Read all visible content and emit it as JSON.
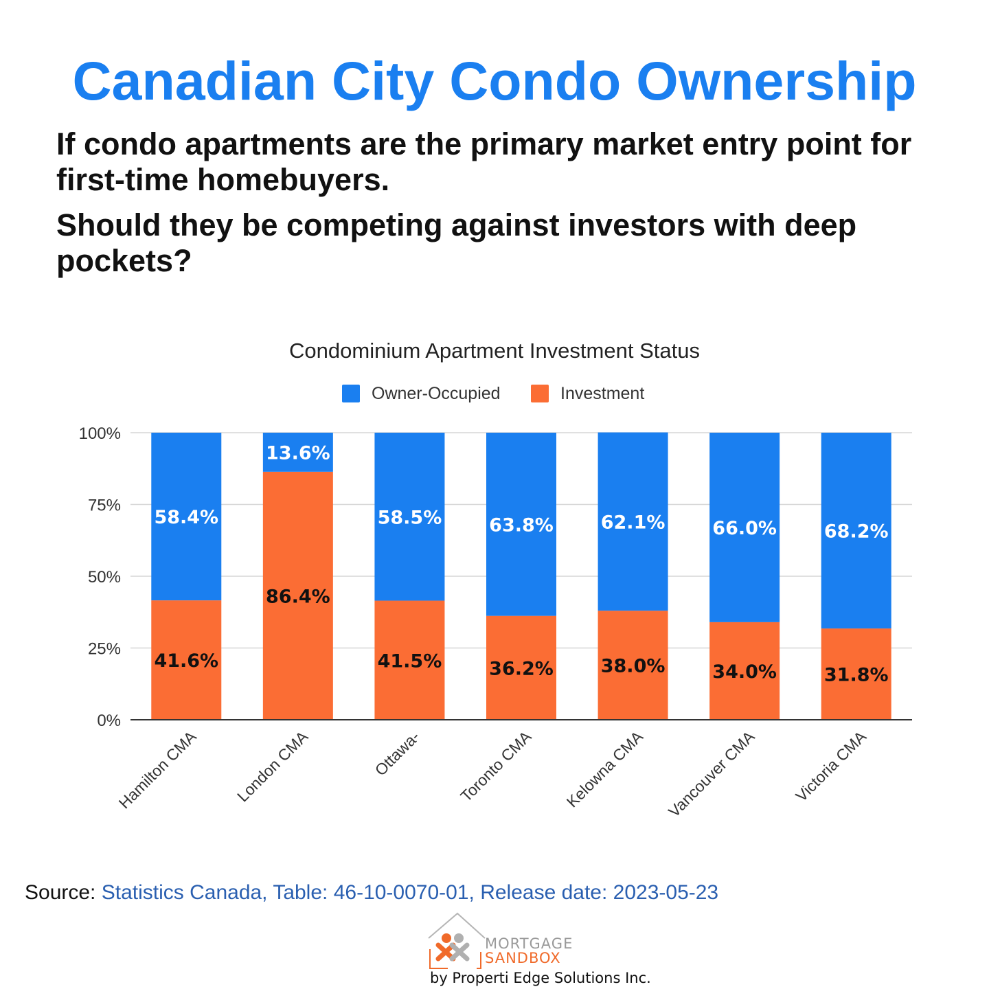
{
  "header": {
    "title": "Canadian City Condo Ownership",
    "question_1": "If condo apartments are the primary market entry point for first-time homebuyers.",
    "question_2": "Should they be competing against investors with deep pockets?"
  },
  "chart_data": {
    "type": "bar",
    "stacked": true,
    "title": "Condominium Apartment Investment Status",
    "categories": [
      "Hamilton CMA",
      "London CMA",
      "Ottawa-",
      "Toronto CMA",
      "Kelowna CMA",
      "Vancouver CMA",
      "Victoria CMA"
    ],
    "series": [
      {
        "name": "Owner-Occupied",
        "color": "#1a7ff0",
        "values": [
          58.4,
          13.6,
          58.5,
          63.8,
          62.1,
          66.0,
          68.2
        ]
      },
      {
        "name": "Investment",
        "color": "#fb6d34",
        "values": [
          41.6,
          86.4,
          41.5,
          36.2,
          38.0,
          34.0,
          31.8
        ]
      }
    ],
    "data_labels": {
      "Owner-Occupied": [
        "58.4%",
        "13.6%",
        "58.5%",
        "63.8%",
        "62.1%",
        "66.0%",
        "68.2%"
      ],
      "Investment": [
        "41.6%",
        "86.4%",
        "41.5%",
        "36.2%",
        "38.0%",
        "34.0%",
        "31.8%"
      ]
    },
    "yticks": [
      "0%",
      "25%",
      "50%",
      "75%",
      "100%"
    ],
    "ylim": [
      0,
      100
    ],
    "grid": true,
    "legend_position": "top-center"
  },
  "source": {
    "label": "Source:",
    "text": "Statistics Canada, Table: 46-10-0070-01, Release date: 2023-05-23"
  },
  "logo": {
    "line1": "MORTGAGE",
    "line2": "SANDBOX",
    "byline": "by Properti Edge Solutions Inc."
  }
}
